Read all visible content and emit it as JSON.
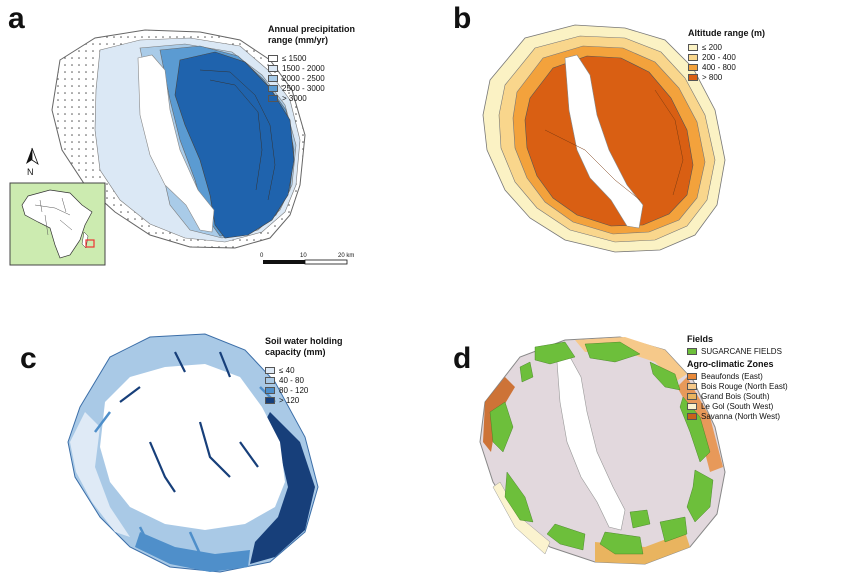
{
  "panels": {
    "a": {
      "letter": "a",
      "legend_title_line1": "Annual precipitation",
      "legend_title_line2": "range (mm/yr)",
      "legend": [
        {
          "label": "≤ 1500",
          "color": "#ffffff",
          "pattern": "dots"
        },
        {
          "label": "1500 - 2000",
          "color": "#dbe8f5"
        },
        {
          "label": "2000 - 2500",
          "color": "#a9cbe8"
        },
        {
          "label": "2500 - 3000",
          "color": "#5b9bd2"
        },
        {
          "label": "> 3000",
          "color": "#1f63ad"
        }
      ],
      "north_label": "N",
      "scale": {
        "labels": [
          "0",
          "10",
          "20 km"
        ]
      }
    },
    "b": {
      "letter": "b",
      "legend_title": "Altitude range (m)",
      "legend": [
        {
          "label": "≤ 200",
          "color": "#fbf2c4"
        },
        {
          "label": "200 - 400",
          "color": "#f9d68c"
        },
        {
          "label": "400 - 800",
          "color": "#f3a23c"
        },
        {
          "label": "> 800",
          "color": "#d95f13"
        }
      ]
    },
    "c": {
      "letter": "c",
      "legend_title_line1": "Soil water holding",
      "legend_title_line2": "capacity (mm)",
      "legend": [
        {
          "label": "≤ 40",
          "color": "#dfeaf6"
        },
        {
          "label": "40 - 80",
          "color": "#a9c9e6"
        },
        {
          "label": "80 - 120",
          "color": "#4f8fca"
        },
        {
          "label": "> 120",
          "color": "#173f7a"
        }
      ]
    },
    "d": {
      "letter": "d",
      "fields_title": "Fields",
      "fields_legend": [
        {
          "label": "SUGARCANE FIELDS",
          "color": "#6dbf3b"
        }
      ],
      "zones_title": "Agro-climatic Zones",
      "legend": [
        {
          "label": "Beaufonds (East)",
          "color": "#e8893a"
        },
        {
          "label": "Bois Rouge (North East)",
          "color": "#f6c98a"
        },
        {
          "label": "Grand Bois (South)",
          "color": "#e9b45f"
        },
        {
          "label": "Le Gol (South West)",
          "color": "#fbf3cf"
        },
        {
          "label": "Savanna (North West)",
          "color": "#c9621a"
        }
      ]
    }
  }
}
